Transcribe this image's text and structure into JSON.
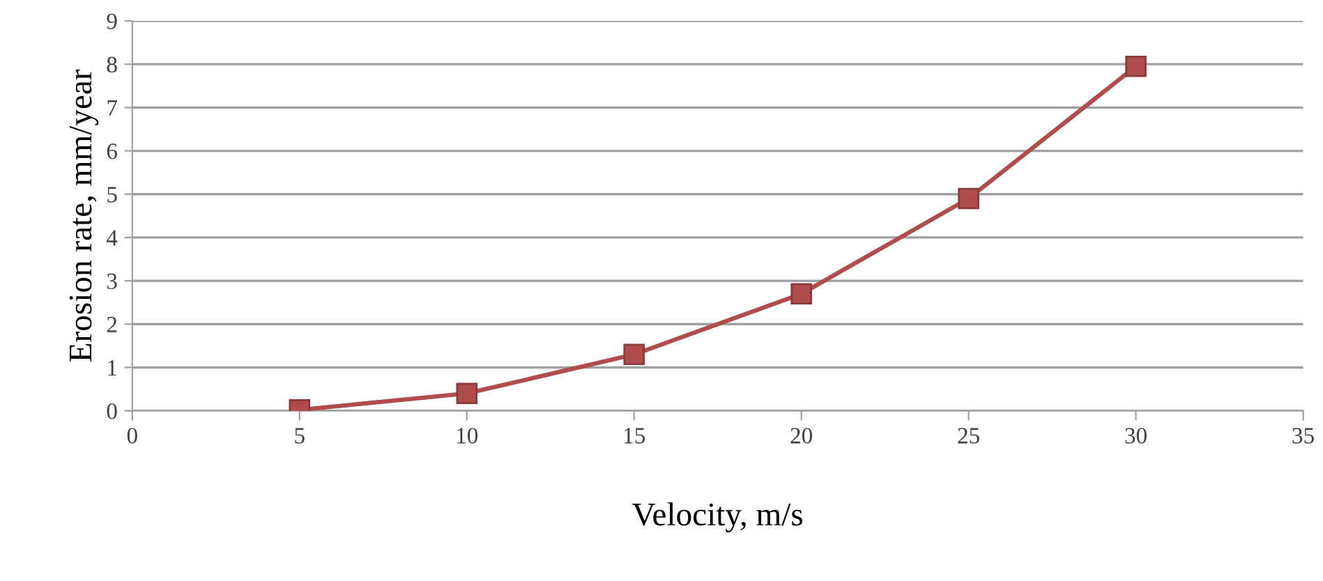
{
  "chart_data": {
    "type": "line",
    "xlabel": "Velocity, m/s",
    "ylabel": "Erosion rate, mm/year",
    "x": [
      5,
      10,
      15,
      20,
      25,
      30
    ],
    "series": [
      {
        "color": "#b04c4c",
        "values": [
          0.02,
          0.4,
          1.3,
          2.7,
          4.9,
          7.95
        ]
      }
    ],
    "xlim": [
      0,
      35
    ],
    "xticks": [
      0,
      5,
      10,
      15,
      20,
      25,
      30,
      35
    ],
    "ylim": [
      0,
      9
    ],
    "yticks": [
      0,
      1,
      2,
      3,
      4,
      5,
      6,
      7,
      8,
      9
    ],
    "grid": "y",
    "marker": "square",
    "line_style": "solid"
  }
}
